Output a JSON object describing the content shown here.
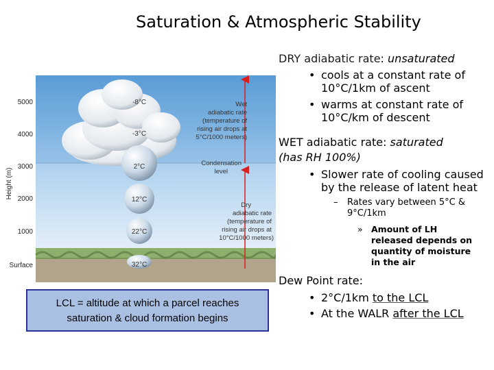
{
  "title": "Saturation & Atmospheric Stability",
  "diagram": {
    "y_axis_label": "Height (m)",
    "heights": [
      "5000",
      "4000",
      "3000",
      "2000",
      "1000",
      "Surface"
    ],
    "temps": [
      "-8°C",
      "-3°C",
      "2°C",
      "12°C",
      "22°C",
      "32°C"
    ],
    "wet_label": [
      "Wet",
      "adiabatic rate",
      "(temperature of",
      "rising air drops at",
      "5°C/1000 meters)"
    ],
    "condensation_label": [
      "Condensation",
      "level"
    ],
    "dry_label": [
      "Dry",
      "adiabatic rate",
      "(temperature of",
      "rising air drops at",
      "10°C/1000 meters)"
    ]
  },
  "lcl_box": {
    "line1": "LCL = altitude at which a parcel reaches",
    "line2": "saturation & cloud formation begins"
  },
  "dry": {
    "label": "DRY adiabatic rate",
    "colon": ": ",
    "state": "unsaturated",
    "b1_l1": "cools at a constant rate of",
    "b1_l2": "10°C/1km of ascent",
    "b2_l1": "warms at constant rate of",
    "b2_l2": "10°C/km of descent"
  },
  "wet": {
    "label": "WET adiabatic rate",
    "colon": ": ",
    "state": "saturated",
    "rh": "(has RH 100%)",
    "b1_l1": "Slower rate of cooling caused",
    "b1_l2": "by the release of latent heat",
    "sub_l1": "Rates vary between 5°C &",
    "sub_l2": "9°C/1km",
    "subsub_l1": "Amount of LH",
    "subsub_l2": "released depends on",
    "subsub_l3": "quantity of moisture",
    "subsub_l4": "in the air"
  },
  "dew": {
    "label": "Dew Point rate:",
    "b1_pre": "2°C/1km ",
    "b1_link": "to the LCL",
    "b2_pre": "At the WALR ",
    "b2_link": "after the LCL"
  },
  "colors": {
    "sky_top": "#6fa9dd",
    "sky_bottom": "#dcebf7",
    "arrow": "#d81e1e",
    "lcl_fill": "#a9c0e3",
    "lcl_border": "#2a2f9a",
    "link": "#555555"
  }
}
